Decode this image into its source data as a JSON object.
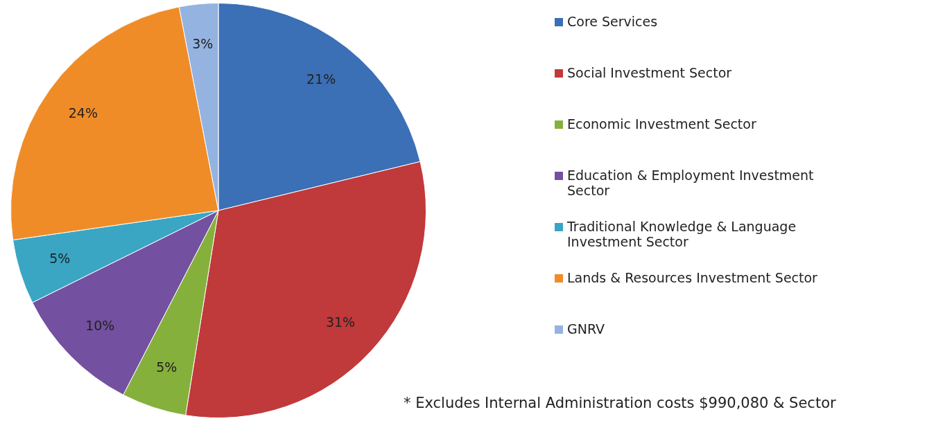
{
  "chart_data": {
    "type": "pie",
    "categories": [
      "Core Services",
      "Social Investment Sector",
      "Economic Investment Sector",
      "Education & Employment Investment Sector",
      "Traditional Knowledge & Language Investment Sector",
      "Lands & Resources Investment Sector",
      "GNRV"
    ],
    "values": [
      21,
      31,
      5,
      10,
      5,
      24,
      3
    ],
    "value_labels": [
      "21%",
      "31%",
      "5%",
      "10%",
      "5%",
      "24%",
      "3%"
    ],
    "colors": [
      "#3b6fb6",
      "#c0393b",
      "#86b03c",
      "#7350a0",
      "#3aa6c4",
      "#f08c28",
      "#94b3e0"
    ],
    "legend": "right",
    "annotations": [
      "* Excludes Internal Administration costs $990,080 & Sector"
    ]
  }
}
